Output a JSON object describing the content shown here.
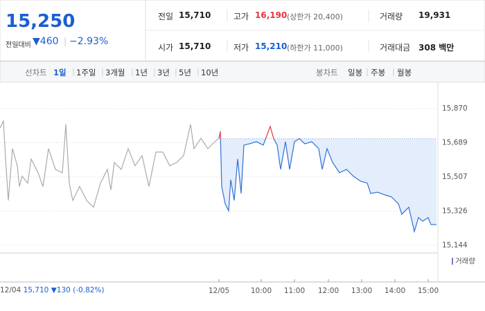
{
  "header": {
    "price": "15,250",
    "change_label": "전일대비",
    "change": "460",
    "change_pct": "−2.93%"
  },
  "stats": [
    {
      "label": "전일",
      "value": "15,710"
    },
    {
      "label": "고가",
      "value": "16,190",
      "note": "(상한가 20,400)"
    },
    {
      "label": "거래량",
      "value": "19,931"
    },
    {
      "label": "시가",
      "value": "15,710"
    },
    {
      "label": "저가",
      "value": "15,210",
      "note": "(하한가 11,000)"
    },
    {
      "label": "거래대금",
      "value": "308 백만"
    }
  ],
  "tabs": {
    "line_label": "선차트",
    "line_items": [
      "1일",
      "1주일",
      "3개월",
      "1년",
      "3년",
      "5년",
      "10년"
    ],
    "candle_label": "봉차트",
    "candle_items": [
      "일봉",
      "주봉",
      "월봉"
    ]
  },
  "chart_data": {
    "type": "line",
    "ylim": [
      15118,
      16006
    ],
    "yticks": [
      {
        "value": 15870,
        "label": "15,870"
      },
      {
        "value": 15689,
        "label": "15,689"
      },
      {
        "value": 15507,
        "label": "15,507"
      },
      {
        "value": 15326,
        "label": "15,326"
      },
      {
        "value": 15144,
        "label": "15,144"
      }
    ],
    "xlim": [
      0,
      632
    ],
    "xticks": [
      {
        "value": 316,
        "label": "12/05"
      },
      {
        "value": 377,
        "label": "10:00"
      },
      {
        "value": 425,
        "label": "11:00"
      },
      {
        "value": 474,
        "label": "12:00"
      },
      {
        "value": 522,
        "label": "13:00"
      },
      {
        "value": 570,
        "label": "14:00"
      },
      {
        "value": 618,
        "label": "15:00"
      }
    ],
    "reference": 15710,
    "grid": true,
    "volume_label": "거래량",
    "series": [
      {
        "name": "12/04",
        "color": "#aaaaaa",
        "x": [
          0,
          5,
          8,
          12,
          18,
          25,
          28,
          32,
          40,
          45,
          55,
          62,
          70,
          80,
          90,
          95,
          100,
          105,
          115,
          125,
          135,
          145,
          155,
          160,
          165,
          175,
          185,
          195,
          205,
          215,
          225,
          235,
          245,
          255,
          265,
          275,
          280,
          290,
          300,
          310,
          315
        ],
        "values": [
          15767,
          15804,
          15602,
          15382,
          15657,
          15566,
          15456,
          15511,
          15474,
          15602,
          15529,
          15456,
          15657,
          15547,
          15529,
          15786,
          15474,
          15382,
          15456,
          15382,
          15346,
          15474,
          15547,
          15438,
          15584,
          15547,
          15657,
          15566,
          15620,
          15456,
          15639,
          15639,
          15566,
          15584,
          15620,
          15786,
          15657,
          15712,
          15657,
          15694,
          15710
        ]
      },
      {
        "name": "12/05",
        "color": "#2f6fd6",
        "up_color": "#e8343c",
        "x": [
          316,
          318,
          320,
          325,
          330,
          333,
          338,
          343,
          348,
          352,
          360,
          370,
          380,
          390,
          395,
          400,
          405,
          412,
          418,
          425,
          432,
          440,
          450,
          460,
          465,
          472,
          480,
          490,
          500,
          510,
          520,
          530,
          535,
          545,
          555,
          565,
          575,
          580,
          590,
          598,
          604,
          610,
          618,
          622,
          630
        ],
        "values": [
          15710,
          15749,
          15456,
          15364,
          15327,
          15492,
          15382,
          15602,
          15419,
          15676,
          15683,
          15694,
          15676,
          15775,
          15710,
          15676,
          15547,
          15694,
          15547,
          15694,
          15710,
          15683,
          15694,
          15657,
          15547,
          15657,
          15584,
          15529,
          15547,
          15511,
          15485,
          15474,
          15419,
          15426,
          15412,
          15401,
          15364,
          15309,
          15346,
          15217,
          15291,
          15272,
          15291,
          15254,
          15254
        ]
      }
    ]
  },
  "footer": {
    "date": "12/04",
    "price": "15,710",
    "change": "130",
    "change_pct": "(-0.82%)"
  }
}
